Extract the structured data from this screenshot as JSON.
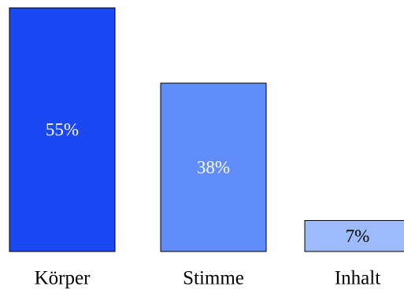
{
  "chart_data": {
    "type": "bar",
    "categories": [
      "Körper",
      "Stimme",
      "Inhalt"
    ],
    "values": [
      55,
      38,
      7
    ],
    "value_labels": [
      "55%",
      "38%",
      "7%"
    ],
    "colors": [
      "#1a49f4",
      "#608df9",
      "#9dbafb"
    ],
    "label_colors": [
      "#ffffff",
      "#ffffff",
      "#000000"
    ],
    "ylim": [
      0,
      55
    ],
    "title": "",
    "xlabel": "",
    "ylabel": "",
    "grid": false,
    "legend": "none"
  }
}
